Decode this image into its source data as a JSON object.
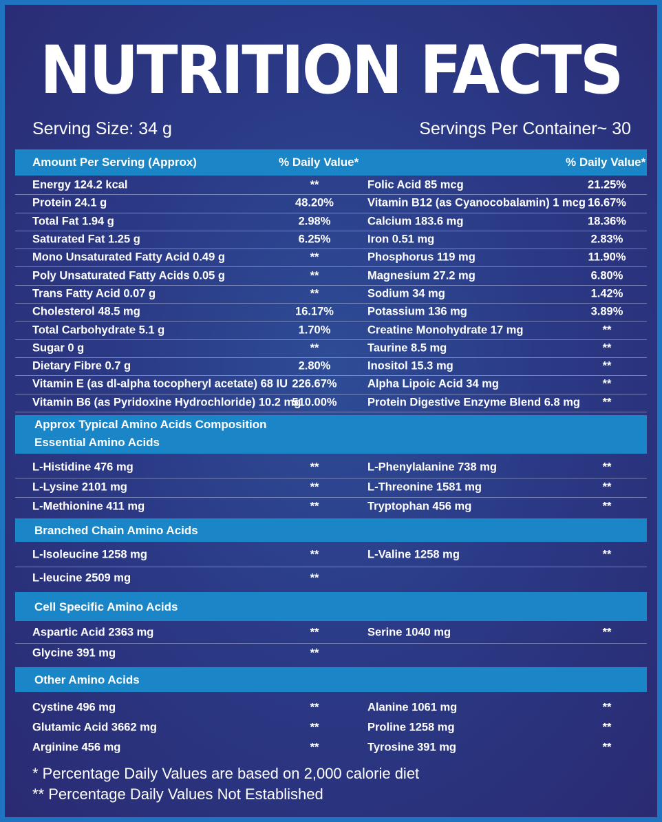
{
  "title": "NUTRITION FACTS",
  "serving_size": "Serving Size: 34 g",
  "servings_per_container": "Servings Per Container~ 30",
  "header": {
    "amount_label": "Amount Per Serving (Approx)",
    "dv_left": "% Daily Value*",
    "dv_right": "% Daily Value*"
  },
  "nutrients": [
    {
      "name": "Energy 124.2 kcal",
      "dv": "**",
      "name2": "Folic Acid 85 mcg",
      "dv2": "21.25%"
    },
    {
      "name": "Protein 24.1 g",
      "dv": "48.20%",
      "name2": "Vitamin B12 (as Cyanocobalamin) 1 mcg",
      "dv2": "16.67%"
    },
    {
      "name": "Total Fat 1.94 g",
      "dv": "2.98%",
      "name2": "Calcium 183.6 mg",
      "dv2": "18.36%"
    },
    {
      "name": "Saturated Fat 1.25 g",
      "dv": "6.25%",
      "name2": "Iron 0.51 mg",
      "dv2": "2.83%"
    },
    {
      "name": "Mono Unsaturated Fatty Acid 0.49 g",
      "dv": "**",
      "name2": "Phosphorus 119 mg",
      "dv2": "11.90%"
    },
    {
      "name": "Poly Unsaturated Fatty Acids 0.05 g",
      "dv": "**",
      "name2": "Magnesium 27.2 mg",
      "dv2": "6.80%"
    },
    {
      "name": "Trans Fatty Acid 0.07 g",
      "dv": "**",
      "name2": "Sodium 34 mg",
      "dv2": "1.42%"
    },
    {
      "name": "Cholesterol 48.5 mg",
      "dv": "16.17%",
      "name2": "Potassium 136 mg",
      "dv2": "3.89%"
    },
    {
      "name": "Total Carbohydrate 5.1 g",
      "dv": "1.70%",
      "name2": "Creatine Monohydrate 17 mg",
      "dv2": "**"
    },
    {
      "name": "Sugar 0 g",
      "dv": "**",
      "name2": "Taurine 8.5 mg",
      "dv2": "**"
    },
    {
      "name": "Dietary Fibre 0.7 g",
      "dv": "2.80%",
      "name2": "Inositol 15.3 mg",
      "dv2": "**"
    },
    {
      "name": "Vitamin E (as dl-alpha tocopheryl acetate) 68 IU",
      "dv": "226.67%",
      "name2": "Alpha Lipoic Acid 34 mg",
      "dv2": "**"
    },
    {
      "name": "Vitamin B6 (as Pyridoxine Hydrochloride) 10.2 mg",
      "dv": "510.00%",
      "name2": "Protein Digestive Enzyme Blend 6.8 mg",
      "dv2": "**"
    }
  ],
  "amino_header": {
    "line1": "Approx Typical Amino Acids Composition",
    "line2": "Essential Amino Acids"
  },
  "essential": [
    {
      "name": "L-Histidine 476 mg",
      "dv": "**",
      "name2": "L-Phenylalanine 738 mg",
      "dv2": "**"
    },
    {
      "name": "L-Lysine 2101 mg",
      "dv": "**",
      "name2": "L-Threonine 1581 mg",
      "dv2": "**"
    },
    {
      "name": "L-Methionine 411 mg",
      "dv": "**",
      "name2": "Tryptophan 456 mg",
      "dv2": "**"
    }
  ],
  "bcaa_header": "Branched Chain Amino Acids",
  "bcaa": [
    {
      "name": "L-Isoleucine 1258 mg",
      "dv": "**",
      "name2": "L-Valine 1258 mg",
      "dv2": "**"
    },
    {
      "name": "L-leucine 2509 mg",
      "dv": "**",
      "name2": "",
      "dv2": ""
    }
  ],
  "cell_header": "Cell Specific Amino Acids",
  "cell": [
    {
      "name": "Aspartic Acid 2363 mg",
      "dv": "**",
      "name2": "Serine 1040 mg",
      "dv2": "**"
    },
    {
      "name": "Glycine 391 mg",
      "dv": "**",
      "name2": "",
      "dv2": ""
    }
  ],
  "other_header": "Other Amino Acids",
  "other": [
    {
      "name": "Cystine 496 mg",
      "dv": "**",
      "name2": "Alanine 1061 mg",
      "dv2": "**"
    },
    {
      "name": "Glutamic Acid 3662 mg",
      "dv": "**",
      "name2": "Proline 1258 mg",
      "dv2": "**"
    },
    {
      "name": "Arginine 456 mg",
      "dv": "**",
      "name2": "Tyrosine 391 mg",
      "dv2": "**"
    }
  ],
  "footnotes": [
    "* Percentage Daily Values are based on 2,000 calorie diet",
    "** Percentage Daily Values Not Established"
  ],
  "colors": {
    "background": "#2b3a86",
    "header_bar": "#1a86c7",
    "border": "#1e74c0",
    "text": "#ffffff"
  }
}
